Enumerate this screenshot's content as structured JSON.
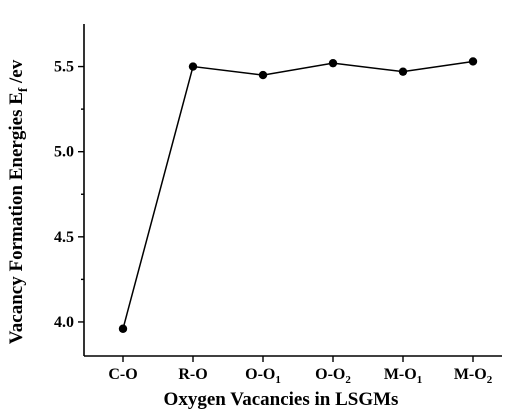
{
  "chart_data": {
    "type": "line",
    "categories": [
      "C-O",
      "R-O",
      "O-O1",
      "O-O2",
      "M-O1",
      "M-O2"
    ],
    "category_labels": [
      {
        "base": "C-O",
        "sub": ""
      },
      {
        "base": "R-O",
        "sub": ""
      },
      {
        "base": "O-O",
        "sub": "1"
      },
      {
        "base": "O-O",
        "sub": "2"
      },
      {
        "base": "M-O",
        "sub": "1"
      },
      {
        "base": "M-O",
        "sub": "2"
      }
    ],
    "series": [
      {
        "values": [
          3.96,
          5.5,
          5.45,
          5.52,
          5.47,
          5.53
        ]
      }
    ],
    "xlabel": "Oxygen Vacancies in LSGMs",
    "ylabel": {
      "prefix": "Vacancy Formation Energies E",
      "sub": "f",
      "suffix": " /ev"
    },
    "ylim": [
      3.8,
      5.75
    ],
    "yticks": [
      "4.0",
      "4.5",
      "5.0",
      "5.5"
    ],
    "grid": false,
    "colors": {
      "line": "#000000",
      "marker": "#000000"
    }
  }
}
